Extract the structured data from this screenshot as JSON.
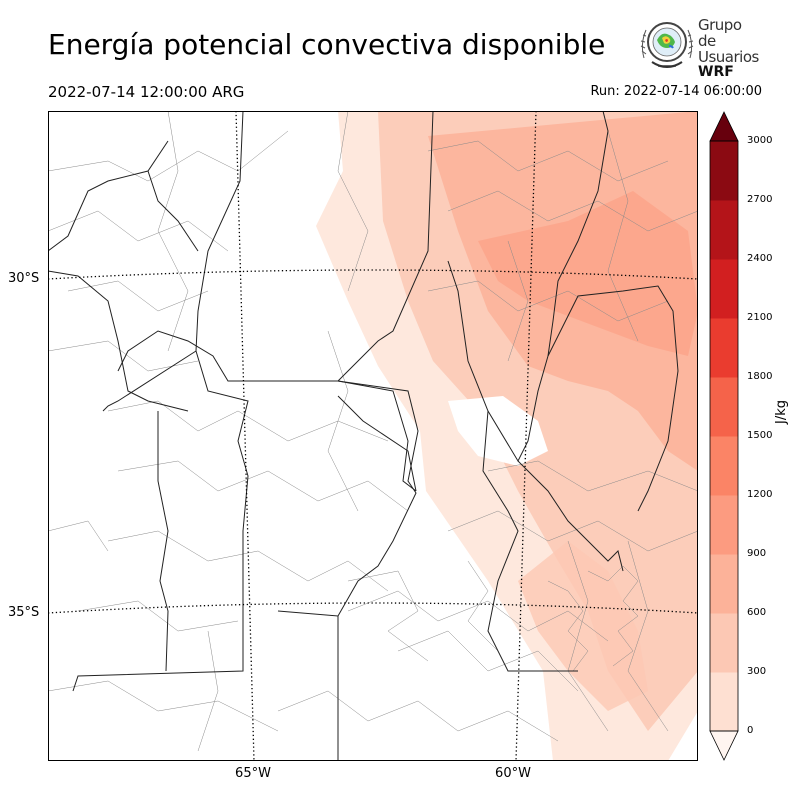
{
  "header": {
    "title": "Energía potencial convectiva disponible",
    "valid_time": "2022-07-14 12:00:00 ARG",
    "run_time": "Run: 2022-07-14 06:00:00"
  },
  "logo": {
    "line1": "Grupo de",
    "line2": "Usuarios",
    "line3": "WRF"
  },
  "map": {
    "lat_labels": [
      "30°S",
      "35°S"
    ],
    "lon_labels": [
      "65°W",
      "60°W"
    ],
    "gridline_style": "dotted",
    "field": "CAPE",
    "region": "central-northern Argentina"
  },
  "colorbar": {
    "unit": "J/kg",
    "ticks": [
      "0",
      "300",
      "600",
      "900",
      "1200",
      "1500",
      "1800",
      "2100",
      "2400",
      "2700",
      "3000"
    ],
    "levels": [
      0,
      150,
      300,
      450,
      600,
      750,
      900,
      1050,
      1200,
      1350,
      1500,
      1650,
      1800,
      1950,
      2100,
      2250,
      2400,
      2550,
      2700,
      2850,
      3000
    ],
    "colors": [
      "#fff5f0",
      "#fee0d2",
      "#fcc8b4",
      "#fcb299",
      "#fc9b80",
      "#fb8466",
      "#f5634a",
      "#ea3c2f",
      "#d21f20",
      "#b41419",
      "#8b0a12",
      "#67000d"
    ],
    "extend": "both"
  }
}
